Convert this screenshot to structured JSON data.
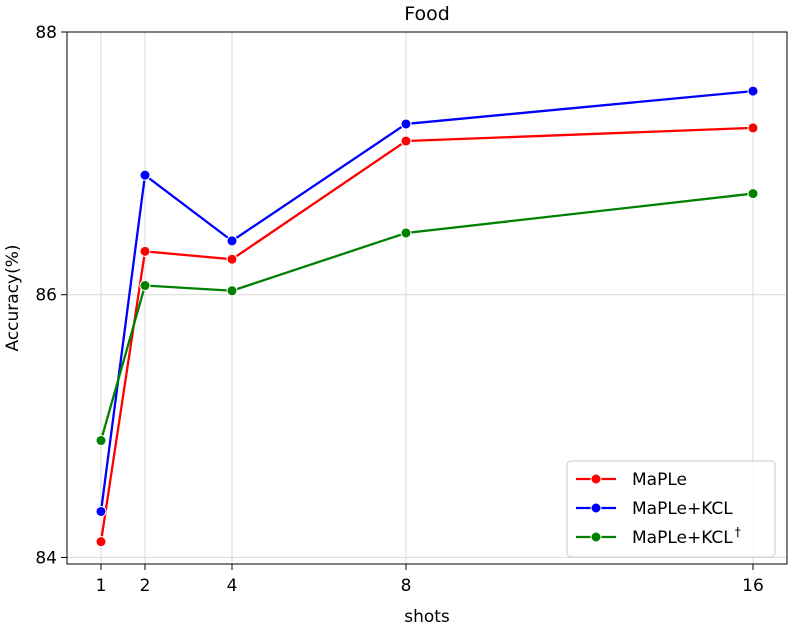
{
  "chart_data": {
    "type": "line",
    "title": "Food",
    "xlabel": "shots",
    "ylabel": "Accuracy(%)",
    "x": [
      1,
      2,
      4,
      8,
      16
    ],
    "x_tick_labels": [
      "1",
      "2",
      "4",
      "8",
      "16"
    ],
    "y_ticks": [
      84,
      86,
      88
    ],
    "y_tick_labels": [
      "84",
      "86",
      "88"
    ],
    "ylim": [
      83.95,
      88.0
    ],
    "grid": true,
    "legend_position": "bottom-right",
    "series": [
      {
        "name": "MaPLe",
        "color": "#ff0000",
        "values": [
          84.12,
          86.33,
          86.27,
          87.17,
          87.27
        ]
      },
      {
        "name": "MaPLe+KCL",
        "color": "#0000ff",
        "values": [
          84.35,
          86.91,
          86.41,
          87.3,
          87.55
        ]
      },
      {
        "name": "MaPLe+KCL",
        "name_superscript": "†",
        "color": "#008000",
        "values": [
          84.89,
          86.07,
          86.03,
          86.47,
          86.77
        ]
      }
    ]
  }
}
